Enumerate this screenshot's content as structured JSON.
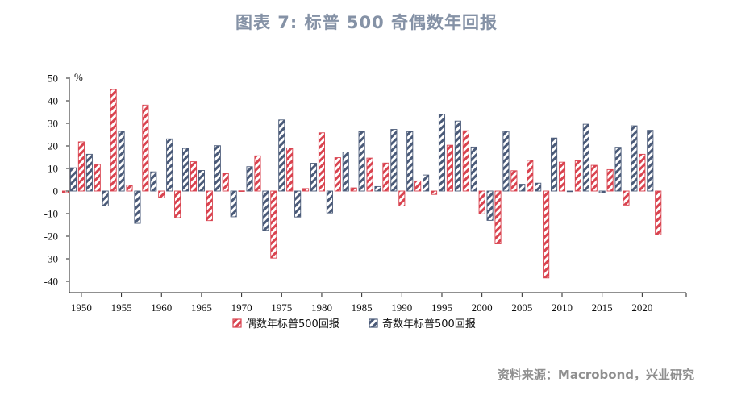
{
  "title": "图表 7:   标普 500 奇偶数年回报",
  "source": "资料来源：Macrobond，兴业研究",
  "colors": {
    "even": "#d9434f",
    "odd": "#4a5a78"
  },
  "chart_data": {
    "type": "bar",
    "unit": "%",
    "ylim": [
      -45,
      50
    ],
    "yticks": [
      50,
      40,
      30,
      20,
      10,
      0,
      -10,
      -20,
      -30,
      -40
    ],
    "xticks": [
      1950,
      1955,
      1960,
      1965,
      1970,
      1975,
      1980,
      1985,
      1990,
      1995,
      2000,
      2005,
      2010,
      2015,
      2020
    ],
    "x_range": [
      1948.5,
      2025.5
    ],
    "series": [
      {
        "name": "偶数年标普500回报",
        "pattern": "even",
        "x": [
          1948,
          1950,
          1952,
          1954,
          1956,
          1958,
          1960,
          1962,
          1964,
          1966,
          1968,
          1970,
          1972,
          1974,
          1976,
          1978,
          1980,
          1982,
          1984,
          1986,
          1988,
          1990,
          1992,
          1994,
          1996,
          1998,
          2000,
          2002,
          2004,
          2006,
          2008,
          2010,
          2012,
          2014,
          2016,
          2018,
          2020,
          2022
        ],
        "values": [
          -0.7,
          21.8,
          11.8,
          45.0,
          2.6,
          38.1,
          -3.0,
          -11.8,
          13.0,
          -13.1,
          7.7,
          0.1,
          15.6,
          -29.7,
          19.1,
          1.1,
          25.8,
          14.8,
          1.4,
          14.6,
          12.4,
          -6.6,
          4.5,
          -1.5,
          20.3,
          26.7,
          -10.1,
          -23.4,
          9.0,
          13.6,
          -38.5,
          12.8,
          13.4,
          11.4,
          9.5,
          -6.2,
          16.3,
          -19.4
        ]
      },
      {
        "name": "奇数年标普500回报",
        "pattern": "odd",
        "x": [
          1949,
          1951,
          1953,
          1955,
          1957,
          1959,
          1961,
          1963,
          1965,
          1967,
          1969,
          1971,
          1973,
          1975,
          1977,
          1979,
          1981,
          1983,
          1985,
          1987,
          1989,
          1991,
          1993,
          1995,
          1997,
          1999,
          2001,
          2003,
          2005,
          2007,
          2009,
          2011,
          2013,
          2015,
          2017,
          2019,
          2021
        ],
        "values": [
          10.3,
          16.3,
          -6.6,
          26.4,
          -14.3,
          8.5,
          23.1,
          18.9,
          9.1,
          20.1,
          -11.4,
          10.8,
          -17.4,
          31.5,
          -11.5,
          12.3,
          -9.7,
          17.3,
          26.3,
          2.0,
          27.3,
          26.3,
          7.1,
          34.1,
          31.0,
          19.5,
          -13.0,
          26.4,
          3.0,
          3.5,
          23.5,
          0.0,
          29.6,
          -0.7,
          19.4,
          28.9,
          26.9
        ]
      }
    ],
    "legend": [
      {
        "label": "偶数年标普500回报",
        "pattern": "even"
      },
      {
        "label": "奇数年标普500回报",
        "pattern": "odd"
      }
    ],
    "legend_position": "bottom-center",
    "grid": false
  }
}
